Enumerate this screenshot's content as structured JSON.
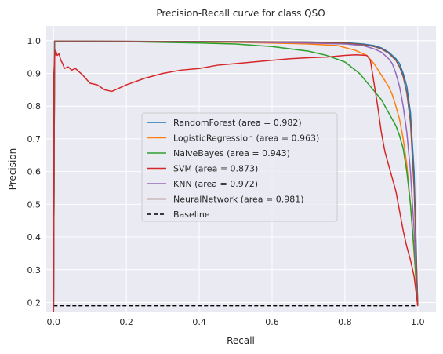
{
  "chart_data": {
    "type": "line",
    "title": "Precision-Recall curve for class QSO",
    "xlabel": "Recall",
    "ylabel": "Precision",
    "xlim": [
      -0.02,
      1.05
    ],
    "ylim": [
      0.17,
      1.045
    ],
    "x_ticks": [
      "0.0",
      "0.2",
      "0.4",
      "0.6",
      "0.8",
      "1.0"
    ],
    "x_tick_values": [
      0,
      0.2,
      0.4,
      0.6,
      0.8,
      1.0
    ],
    "y_ticks": [
      "0.2",
      "0.3",
      "0.4",
      "0.5",
      "0.6",
      "0.7",
      "0.8",
      "0.9",
      "1.0"
    ],
    "y_tick_values": [
      0.2,
      0.3,
      0.4,
      0.5,
      0.6,
      0.7,
      0.8,
      0.9,
      1.0
    ],
    "grid": true,
    "legend_position": "center",
    "series": [
      {
        "name": "RandomForest (area = 0.982)",
        "color": "#1f77b4",
        "x": [
          0,
          0.003,
          0.2,
          0.5,
          0.7,
          0.8,
          0.85,
          0.88,
          0.9,
          0.92,
          0.94,
          0.95,
          0.96,
          0.97,
          0.98,
          0.99,
          1.0
        ],
        "y": [
          0.19,
          0.999,
          0.998,
          0.997,
          0.996,
          0.994,
          0.99,
          0.985,
          0.978,
          0.965,
          0.945,
          0.93,
          0.9,
          0.86,
          0.78,
          0.6,
          0.19
        ]
      },
      {
        "name": "LogisticRegression (area = 0.963)",
        "color": "#ff7f0e",
        "x": [
          0,
          0.003,
          0.2,
          0.5,
          0.7,
          0.78,
          0.83,
          0.86,
          0.88,
          0.9,
          0.92,
          0.93,
          0.94,
          0.95,
          0.96,
          0.97,
          0.98,
          0.99,
          1.0
        ],
        "y": [
          0.19,
          0.999,
          0.998,
          0.995,
          0.99,
          0.985,
          0.97,
          0.955,
          0.93,
          0.895,
          0.86,
          0.835,
          0.8,
          0.76,
          0.7,
          0.62,
          0.5,
          0.35,
          0.19
        ]
      },
      {
        "name": "NaiveBayes (area = 0.943)",
        "color": "#2ca02c",
        "x": [
          0,
          0.003,
          0.2,
          0.4,
          0.5,
          0.6,
          0.7,
          0.75,
          0.8,
          0.84,
          0.87,
          0.9,
          0.92,
          0.94,
          0.95,
          0.96,
          0.97,
          0.98,
          0.99,
          1.0
        ],
        "y": [
          0.19,
          0.999,
          0.997,
          0.993,
          0.99,
          0.982,
          0.968,
          0.955,
          0.935,
          0.9,
          0.86,
          0.82,
          0.78,
          0.74,
          0.71,
          0.67,
          0.6,
          0.5,
          0.36,
          0.19
        ]
      },
      {
        "name": "SVM (area = 0.873)",
        "color": "#d62728",
        "x": [
          0,
          0.001,
          0.003,
          0.006,
          0.01,
          0.015,
          0.02,
          0.025,
          0.03,
          0.04,
          0.05,
          0.06,
          0.08,
          0.1,
          0.12,
          0.14,
          0.16,
          0.18,
          0.2,
          0.25,
          0.3,
          0.35,
          0.4,
          0.45,
          0.5,
          0.55,
          0.6,
          0.65,
          0.7,
          0.75,
          0.8,
          0.83,
          0.86,
          0.87,
          0.88,
          0.89,
          0.9,
          0.91,
          0.92,
          0.93,
          0.94,
          0.95,
          0.96,
          0.97,
          0.98,
          0.99,
          1.0
        ],
        "y": [
          0.17,
          0.9,
          0.95,
          0.97,
          0.955,
          0.96,
          0.94,
          0.93,
          0.915,
          0.92,
          0.91,
          0.915,
          0.895,
          0.87,
          0.865,
          0.85,
          0.845,
          0.855,
          0.865,
          0.885,
          0.9,
          0.91,
          0.915,
          0.925,
          0.93,
          0.935,
          0.94,
          0.945,
          0.948,
          0.95,
          0.955,
          0.957,
          0.955,
          0.94,
          0.87,
          0.8,
          0.72,
          0.66,
          0.62,
          0.58,
          0.54,
          0.48,
          0.42,
          0.37,
          0.33,
          0.28,
          0.19
        ]
      },
      {
        "name": "KNN (area = 0.972)",
        "color": "#9467bd",
        "x": [
          0,
          0.003,
          0.2,
          0.5,
          0.7,
          0.8,
          0.85,
          0.88,
          0.9,
          0.92,
          0.93,
          0.94,
          0.95,
          0.96,
          0.97,
          0.98,
          0.99,
          1.0
        ],
        "y": [
          0.19,
          0.999,
          0.998,
          0.996,
          0.993,
          0.99,
          0.985,
          0.975,
          0.965,
          0.945,
          0.93,
          0.9,
          0.86,
          0.8,
          0.72,
          0.6,
          0.42,
          0.19
        ]
      },
      {
        "name": "NeuralNetwork (area = 0.981)",
        "color": "#8c564b",
        "x": [
          0,
          0.003,
          0.2,
          0.5,
          0.7,
          0.8,
          0.85,
          0.88,
          0.9,
          0.92,
          0.94,
          0.95,
          0.96,
          0.97,
          0.98,
          0.99,
          1.0
        ],
        "y": [
          0.19,
          0.999,
          0.998,
          0.997,
          0.996,
          0.993,
          0.988,
          0.982,
          0.975,
          0.962,
          0.94,
          0.92,
          0.89,
          0.84,
          0.75,
          0.55,
          0.19
        ]
      },
      {
        "name": "Baseline",
        "color": "#000000",
        "dashed": true,
        "x": [
          0,
          1.0
        ],
        "y": [
          0.19,
          0.19
        ]
      }
    ]
  }
}
